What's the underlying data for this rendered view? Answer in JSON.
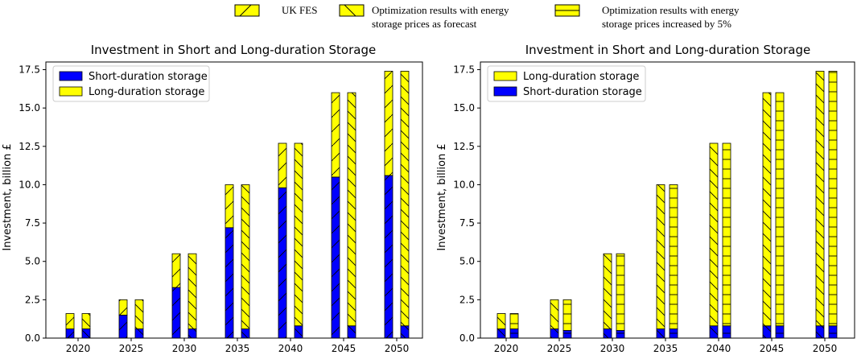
{
  "top_legend": {
    "items": [
      {
        "label_lines": [
          "UK FES"
        ],
        "hatch": "fwd"
      },
      {
        "label_lines": [
          "Optimization results with energy",
          "storage prices as forecast"
        ],
        "hatch": "back"
      },
      {
        "label_lines": [
          "Optimization results with energy",
          "storage prices increased by 5%"
        ],
        "hatch": "horiz"
      }
    ]
  },
  "colors": {
    "short": "#0000ff",
    "long": "#ffff00",
    "edge": "#000000"
  },
  "chart_data": [
    {
      "type": "bar",
      "stacked": true,
      "title": "Investment in Short and Long-duration Storage",
      "ylabel": "Investment, billion £",
      "ylim": [
        0,
        18
      ],
      "yticks": [
        "0.0",
        "2.5",
        "5.0",
        "7.5",
        "10.0",
        "12.5",
        "15.0",
        "17.5"
      ],
      "ytick_values": [
        0,
        2.5,
        5,
        7.5,
        10,
        12.5,
        15,
        17.5
      ],
      "categories": [
        "2020",
        "2025",
        "2030",
        "2035",
        "2040",
        "2045",
        "2050"
      ],
      "legend": {
        "position": "upper-left",
        "entries": [
          {
            "label": "Short-duration storage",
            "series": "short"
          },
          {
            "label": "Long-duration storage",
            "series": "long"
          }
        ]
      },
      "bars": [
        {
          "name": "UK FES",
          "hatch": "fwd",
          "short": [
            0.6,
            1.5,
            3.3,
            7.2,
            9.8,
            10.5,
            10.6
          ],
          "total": [
            1.6,
            2.5,
            5.5,
            10.0,
            12.7,
            16.0,
            17.4
          ]
        },
        {
          "name": "Optimization results with energy storage prices as forecast",
          "hatch": "back",
          "short": [
            0.6,
            0.6,
            0.6,
            0.6,
            0.8,
            0.8,
            0.8
          ],
          "total": [
            1.6,
            2.5,
            5.5,
            10.0,
            12.7,
            16.0,
            17.4
          ]
        }
      ]
    },
    {
      "type": "bar",
      "stacked": true,
      "title": "Investment in Short and Long-duration Storage",
      "ylabel": "Investment, billion £",
      "ylim": [
        0,
        18
      ],
      "yticks": [
        "0.0",
        "2.5",
        "5.0",
        "7.5",
        "10.0",
        "12.5",
        "15.0",
        "17.5"
      ],
      "ytick_values": [
        0,
        2.5,
        5,
        7.5,
        10,
        12.5,
        15,
        17.5
      ],
      "categories": [
        "2020",
        "2025",
        "2030",
        "2035",
        "2040",
        "2045",
        "2050"
      ],
      "legend": {
        "position": "upper-left",
        "entries": [
          {
            "label": "Long-duration storage",
            "series": "long"
          },
          {
            "label": "Short-duration storage",
            "series": "short"
          }
        ]
      },
      "bars": [
        {
          "name": "Optimization results with energy storage prices as forecast",
          "hatch": "back",
          "short": [
            0.6,
            0.6,
            0.6,
            0.6,
            0.8,
            0.8,
            0.8
          ],
          "total": [
            1.6,
            2.5,
            5.5,
            10.0,
            12.7,
            16.0,
            17.4
          ]
        },
        {
          "name": "Optimization results with energy storage prices increased by 5%",
          "hatch": "horiz",
          "short": [
            0.6,
            0.5,
            0.5,
            0.6,
            0.8,
            0.8,
            0.8
          ],
          "total": [
            1.6,
            2.5,
            5.5,
            10.0,
            12.7,
            16.0,
            17.4
          ]
        }
      ]
    }
  ]
}
